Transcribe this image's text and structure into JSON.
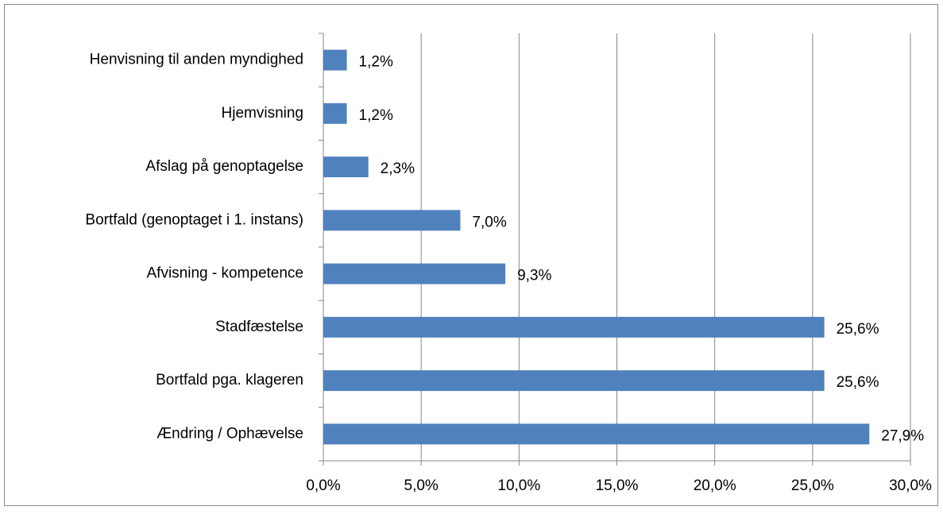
{
  "chart_data": {
    "type": "bar",
    "orientation": "horizontal",
    "categories": [
      "Henvisning til anden myndighed",
      "Hjemvisning",
      "Afslag på genoptagelse",
      "Bortfald (genoptaget i 1. instans)",
      "Afvisning - kompetence",
      "Stadfæstelse",
      "Bortfald pga. klageren",
      "Ændring / Ophævelse"
    ],
    "values": [
      1.2,
      1.2,
      2.3,
      7.0,
      9.3,
      25.6,
      25.6,
      27.9
    ],
    "value_labels": [
      "1,2%",
      "1,2%",
      "2,3%",
      "7,0%",
      "9,3%",
      "25,6%",
      "25,6%",
      "27,9%"
    ],
    "color": "#4f81bd",
    "xlim": [
      0,
      30
    ],
    "xticks": [
      {
        "value": 0,
        "label": "0,0%"
      },
      {
        "value": 5,
        "label": "5,0%"
      },
      {
        "value": 10,
        "label": "10,0%"
      },
      {
        "value": 15,
        "label": "15,0%"
      },
      {
        "value": 20,
        "label": "20,0%"
      },
      {
        "value": 25,
        "label": "25,0%"
      },
      {
        "value": 30,
        "label": "30,0%"
      }
    ],
    "grid": true
  }
}
